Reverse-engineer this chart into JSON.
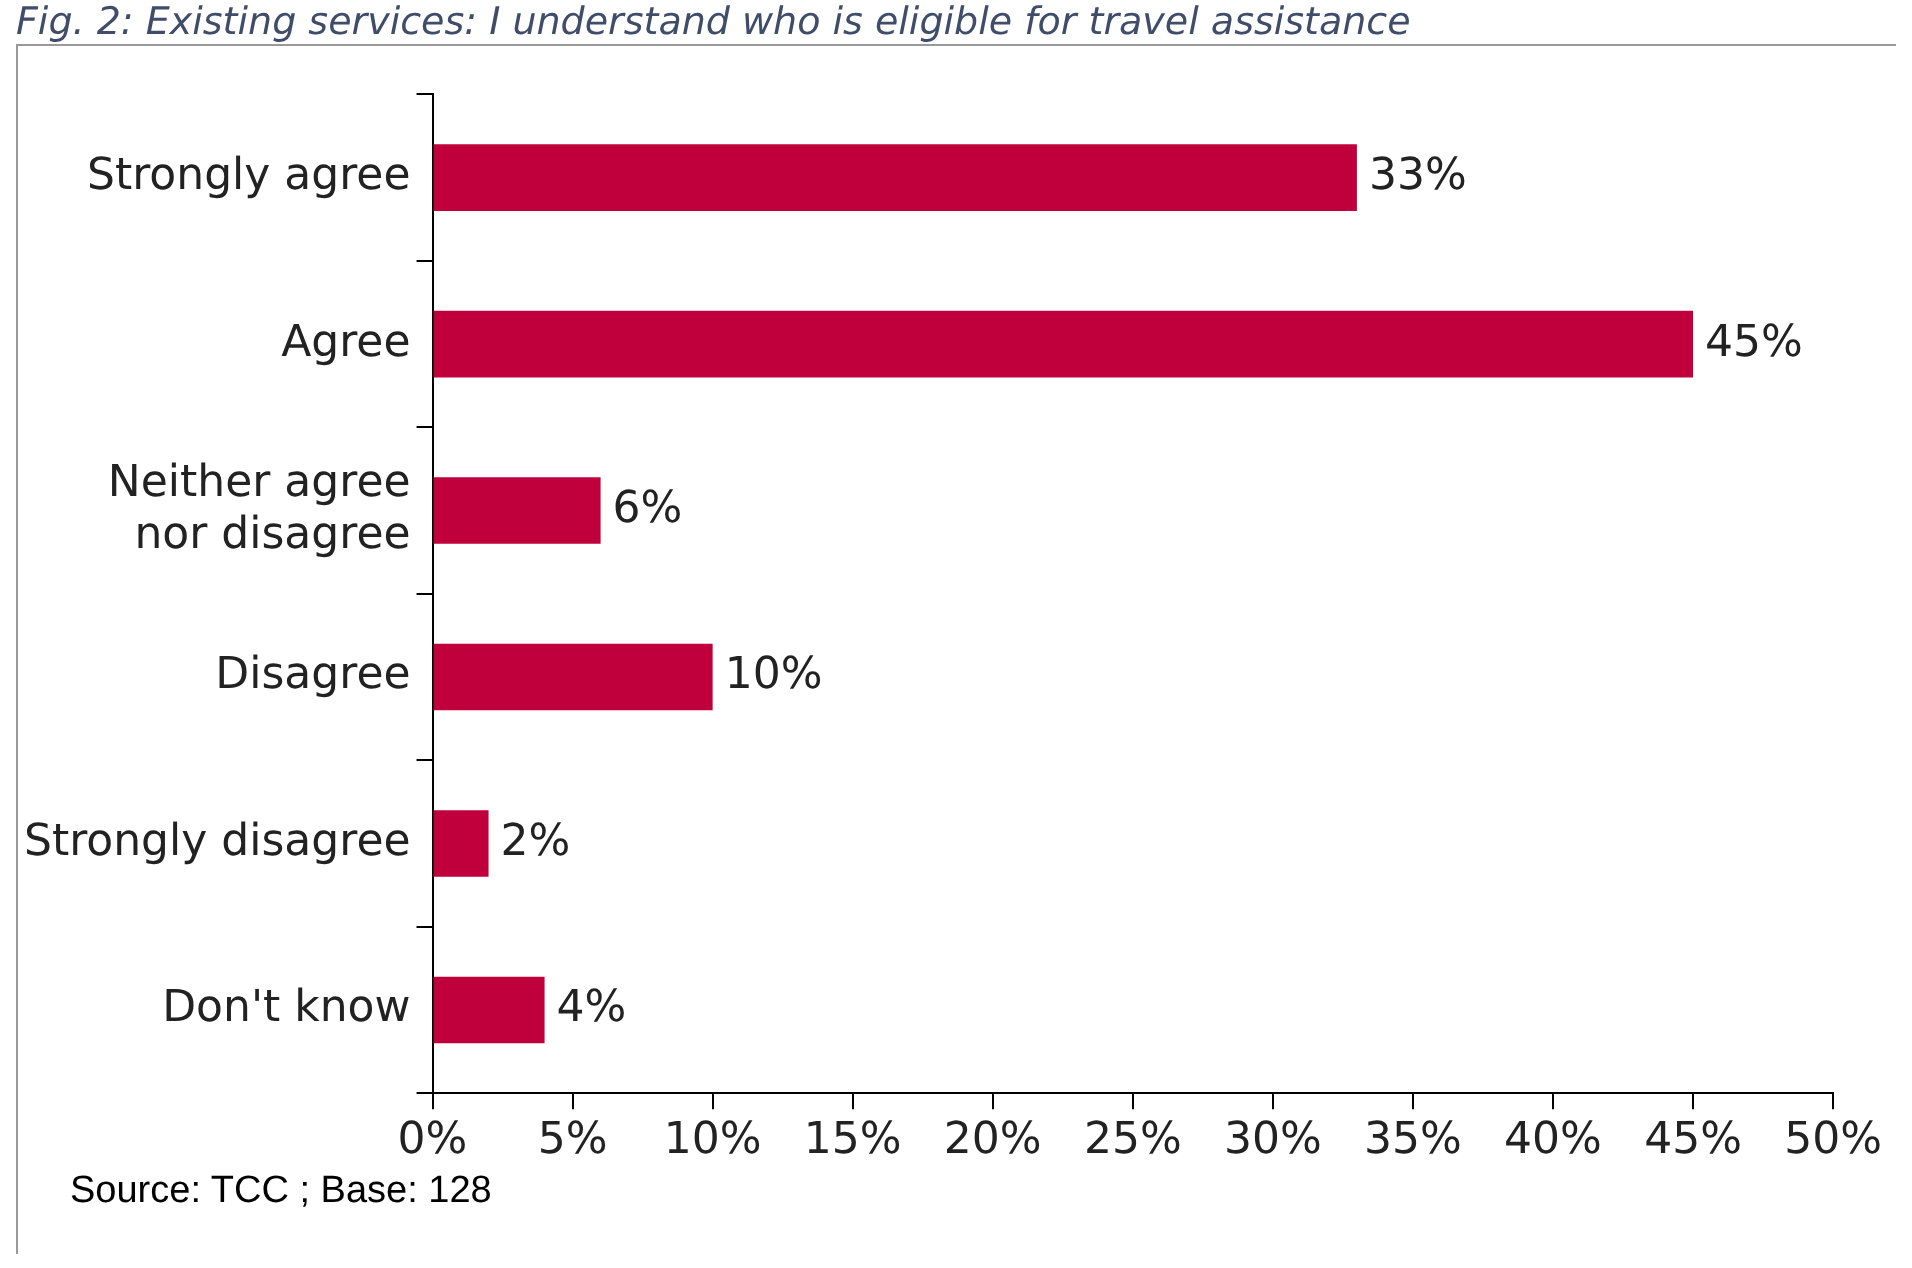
{
  "chart_data": {
    "type": "bar",
    "orientation": "horizontal",
    "title": "Fig. 2: Existing services: I understand who is eligible for travel assistance",
    "categories": [
      "Strongly agree",
      "Agree",
      "Neither agree nor disagree",
      "Disagree",
      "Strongly disagree",
      "Don't know"
    ],
    "values": [
      33,
      45,
      6,
      10,
      2,
      4
    ],
    "value_labels": [
      "33%",
      "45%",
      "6%",
      "10%",
      "2%",
      "4%"
    ],
    "color": "#c0003c",
    "xlim": [
      0,
      50
    ],
    "xticks": [
      {
        "value": 0,
        "label": "0%"
      },
      {
        "value": 5,
        "label": "5%"
      },
      {
        "value": 10,
        "label": "10%"
      },
      {
        "value": 15,
        "label": "15%"
      },
      {
        "value": 20,
        "label": "20%"
      },
      {
        "value": 25,
        "label": "25%"
      },
      {
        "value": 30,
        "label": "30%"
      },
      {
        "value": 35,
        "label": "35%"
      },
      {
        "value": 40,
        "label": "40%"
      },
      {
        "value": 45,
        "label": "45%"
      },
      {
        "value": 50,
        "label": "50%"
      }
    ],
    "grid": false,
    "legend": false,
    "annotations": [
      "Source: TCC ; Base: 128"
    ]
  }
}
